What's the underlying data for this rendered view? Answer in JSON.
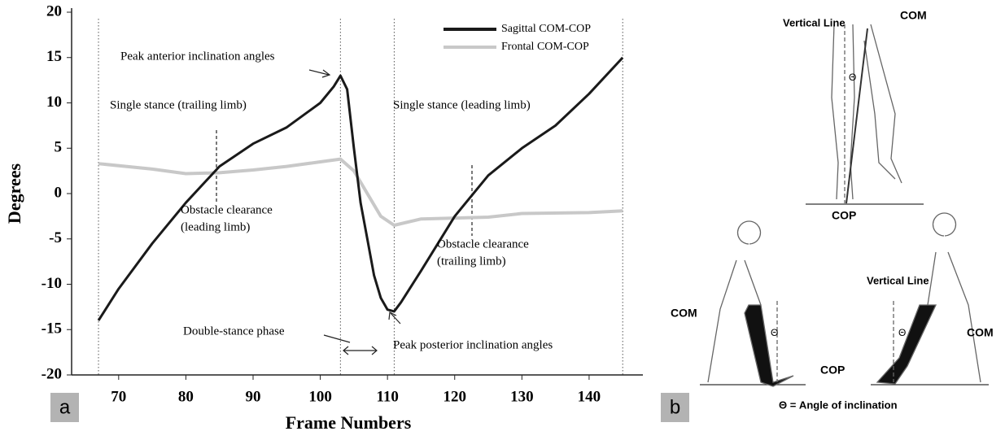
{
  "chart_data": {
    "type": "line",
    "x_label": "Frame Numbers",
    "y_label": "Degrees",
    "xlim": [
      63,
      148
    ],
    "xticks": [
      70,
      80,
      90,
      100,
      110,
      120,
      130,
      140
    ],
    "ylim": [
      -20,
      20
    ],
    "yticks": [
      -20,
      -15,
      -10,
      -5,
      0,
      5,
      10,
      15,
      20
    ],
    "phase_lines": [
      67,
      103,
      111,
      145
    ],
    "legend": "upper right",
    "series": [
      {
        "name": "Sagittal COM-COP",
        "color": "#1a1a1a",
        "x": [
          67,
          70,
          75,
          80,
          85,
          90,
          95,
          100,
          102,
          103,
          104,
          105,
          106,
          107,
          108,
          109,
          110,
          111,
          112,
          115,
          120,
          125,
          130,
          135,
          140,
          145
        ],
        "values": [
          -14,
          -10.5,
          -5.5,
          -1,
          3,
          5.5,
          7.3,
          10,
          11.8,
          13,
          11.5,
          5,
          -1,
          -5,
          -9,
          -11.5,
          -12.8,
          -13,
          -12,
          -8.5,
          -2.5,
          2,
          5,
          7.5,
          11,
          15
        ]
      },
      {
        "name": "Frontal COM-COP",
        "color": "#c8c8c8",
        "x": [
          67,
          75,
          80,
          85,
          90,
          95,
          100,
          103,
          105,
          107,
          109,
          111,
          115,
          120,
          125,
          130,
          140,
          145
        ],
        "values": [
          3.3,
          2.7,
          2.2,
          2.3,
          2.6,
          3.0,
          3.5,
          3.8,
          2.5,
          0,
          -2.5,
          -3.5,
          -2.8,
          -2.7,
          -2.6,
          -2.2,
          -2.1,
          -1.9
        ]
      }
    ],
    "annotations": [
      "Peak anterior inclination angles",
      "Single stance (trailing limb)",
      "Single stance (leading limb)",
      "Obstacle clearance",
      "(leading limb)",
      "Obstacle clearance",
      "(trailing limb)",
      "Double-stance phase",
      "Peak posterior inclination angles"
    ],
    "panel_label": "a"
  },
  "figure": {
    "panel_label": "b",
    "labels": [
      "Vertical Line",
      "COM",
      "COP",
      "Θ",
      "Vertical Line",
      "COM",
      "COM",
      "COP",
      "Θ",
      "Θ",
      "Θ = Angle of inclination"
    ]
  }
}
